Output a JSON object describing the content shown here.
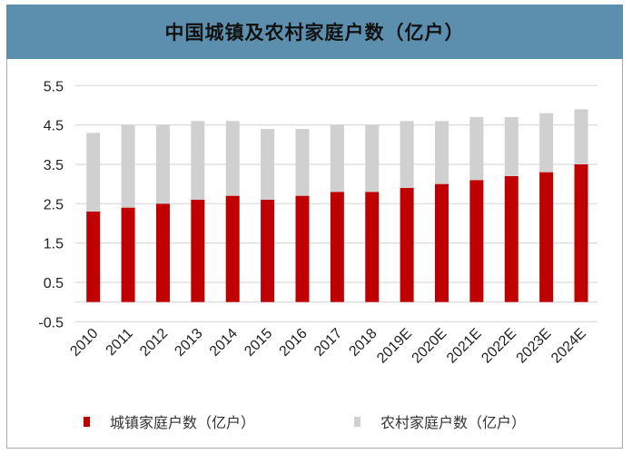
{
  "chart_data": {
    "type": "bar",
    "stacked": true,
    "title": "中国城镇及农村家庭户数（亿户）",
    "xlabel": "",
    "ylabel": "",
    "ylim": [
      -0.5,
      5.5
    ],
    "yticks": [
      "5.5",
      "4.5",
      "3.5",
      "2.5",
      "1.5",
      "0.5",
      "-0.5"
    ],
    "grid": true,
    "legend_position": "bottom",
    "categories": [
      "2010",
      "2011",
      "2012",
      "2013",
      "2014",
      "2015",
      "2016",
      "2017",
      "2018",
      "2019E",
      "2020E",
      "2021E",
      "2022E",
      "2023E",
      "2024E"
    ],
    "series": [
      {
        "name": "城镇家庭户数（亿户）",
        "color": "#c00000",
        "values": [
          2.3,
          2.4,
          2.5,
          2.6,
          2.7,
          2.6,
          2.7,
          2.8,
          2.8,
          2.9,
          3.0,
          3.1,
          3.2,
          3.3,
          3.5
        ]
      },
      {
        "name": "农村家庭户数（亿户）",
        "color": "#d0d0d0",
        "values": [
          2.0,
          2.1,
          2.0,
          2.0,
          1.9,
          1.8,
          1.7,
          1.7,
          1.7,
          1.7,
          1.6,
          1.6,
          1.5,
          1.5,
          1.4
        ]
      }
    ]
  },
  "colors": {
    "title_bar": "#5b8fad",
    "grid": "#d9d9d9"
  }
}
